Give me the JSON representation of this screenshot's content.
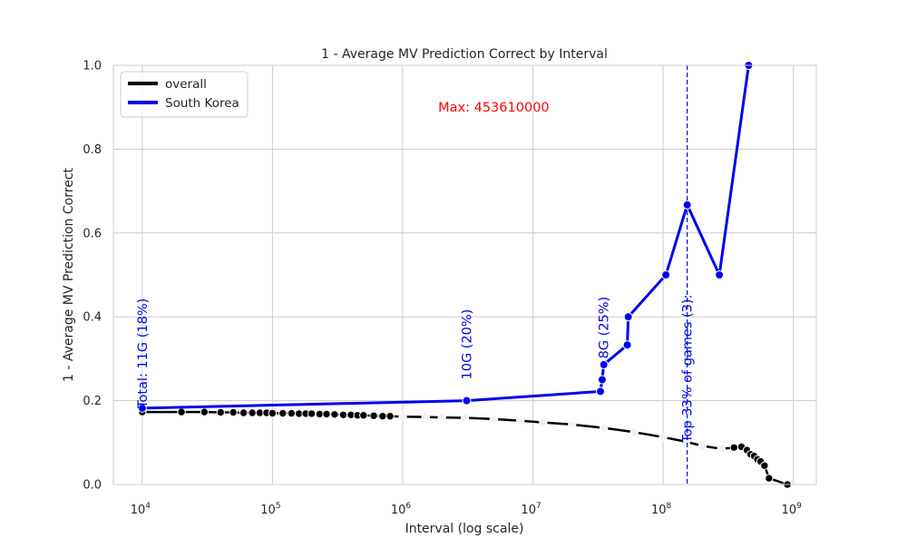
{
  "chart_data": {
    "type": "line",
    "title": "1 - Average MV Prediction Correct by Interval",
    "xlabel": "Interval (log scale)",
    "ylabel": "1 - Average MV Prediction Correct",
    "xscale": "log",
    "xlim": [
      6000,
      1500000000
    ],
    "ylim": [
      0,
      1.0
    ],
    "grid": true,
    "legend_position": "top-left",
    "x_ticks": [
      {
        "value": 10000,
        "base": "10",
        "exp": "4"
      },
      {
        "value": 100000,
        "base": "10",
        "exp": "5"
      },
      {
        "value": 1000000,
        "base": "10",
        "exp": "6"
      },
      {
        "value": 10000000,
        "base": "10",
        "exp": "7"
      },
      {
        "value": 100000000,
        "base": "10",
        "exp": "8"
      },
      {
        "value": 1000000000,
        "base": "10",
        "exp": "9"
      }
    ],
    "y_ticks": [
      {
        "value": 0.0,
        "label": "0.0"
      },
      {
        "value": 0.2,
        "label": "0.2"
      },
      {
        "value": 0.4,
        "label": "0.4"
      },
      {
        "value": 0.6,
        "label": "0.6"
      },
      {
        "value": 0.8,
        "label": "0.8"
      },
      {
        "value": 1.0,
        "label": "1.0"
      }
    ],
    "series": [
      {
        "name": "overall",
        "color": "#000000",
        "points": [
          [
            10000,
            0.173
          ],
          [
            20000,
            0.173
          ],
          [
            30000,
            0.173
          ],
          [
            40000,
            0.172
          ],
          [
            50000,
            0.172
          ],
          [
            60000,
            0.171
          ],
          [
            70000,
            0.171
          ],
          [
            80000,
            0.171
          ],
          [
            90000,
            0.171
          ],
          [
            100000,
            0.17
          ],
          [
            120000,
            0.17
          ],
          [
            140000,
            0.17
          ],
          [
            160000,
            0.169
          ],
          [
            180000,
            0.169
          ],
          [
            200000,
            0.169
          ],
          [
            230000,
            0.168
          ],
          [
            260000,
            0.168
          ],
          [
            300000,
            0.167
          ],
          [
            350000,
            0.166
          ],
          [
            400000,
            0.166
          ],
          [
            450000,
            0.165
          ],
          [
            500000,
            0.165
          ],
          [
            600000,
            0.164
          ],
          [
            700000,
            0.163
          ],
          [
            800000,
            0.163
          ],
          [
            1000000,
            0.162
          ],
          [
            1500000,
            0.161
          ],
          [
            2000000,
            0.16
          ],
          [
            3000000,
            0.159
          ],
          [
            5000000,
            0.156
          ],
          [
            8000000,
            0.152
          ],
          [
            12000000,
            0.148
          ],
          [
            20000000,
            0.143
          ],
          [
            35000000,
            0.135
          ],
          [
            60000000,
            0.125
          ],
          [
            100000000,
            0.113
          ],
          [
            150000000,
            0.102
          ],
          [
            200000000,
            0.092
          ],
          [
            280000000,
            0.085
          ],
          [
            350000000,
            0.088
          ],
          [
            400000000,
            0.09
          ],
          [
            440000000,
            0.082
          ],
          [
            470000000,
            0.072
          ],
          [
            500000000,
            0.068
          ],
          [
            530000000,
            0.06
          ],
          [
            560000000,
            0.055
          ],
          [
            600000000,
            0.045
          ],
          [
            650000000,
            0.015
          ],
          [
            900000000,
            0.0
          ]
        ]
      },
      {
        "name": "South Korea",
        "color": "#0000ee",
        "points": [
          [
            10000,
            0.182
          ],
          [
            3100000,
            0.2
          ],
          [
            33000000,
            0.222
          ],
          [
            34000000,
            0.25
          ],
          [
            35000000,
            0.286
          ],
          [
            53000000,
            0.333
          ],
          [
            54000000,
            0.4
          ],
          [
            105000000,
            0.5
          ],
          [
            153000000,
            0.667
          ],
          [
            270000000,
            0.5
          ],
          [
            453610000,
            1.0
          ]
        ]
      }
    ],
    "annotations": [
      {
        "text": "Total: 11G (18%)",
        "x": 10000,
        "y": 0.182,
        "color": "#0000ee",
        "rotation": -90
      },
      {
        "text": "10G (20%)",
        "x": 3100000,
        "y": 0.25,
        "color": "#0000ee",
        "rotation": -90
      },
      {
        "text": "8G (25%)",
        "x": 35000000,
        "y": 0.3,
        "color": "#0000ee",
        "rotation": -90
      },
      {
        "text": "Top 33% of games (3):",
        "x": 153000000,
        "y": 0.1,
        "color": "#0000ee",
        "rotation": -90
      },
      {
        "text": "Max: 453610000",
        "x": 5000000,
        "y": 0.9,
        "color": "#ff0000",
        "rotation": 0
      }
    ],
    "vline": {
      "x": 153000000,
      "color": "#0000ee",
      "style": "dashed"
    }
  }
}
